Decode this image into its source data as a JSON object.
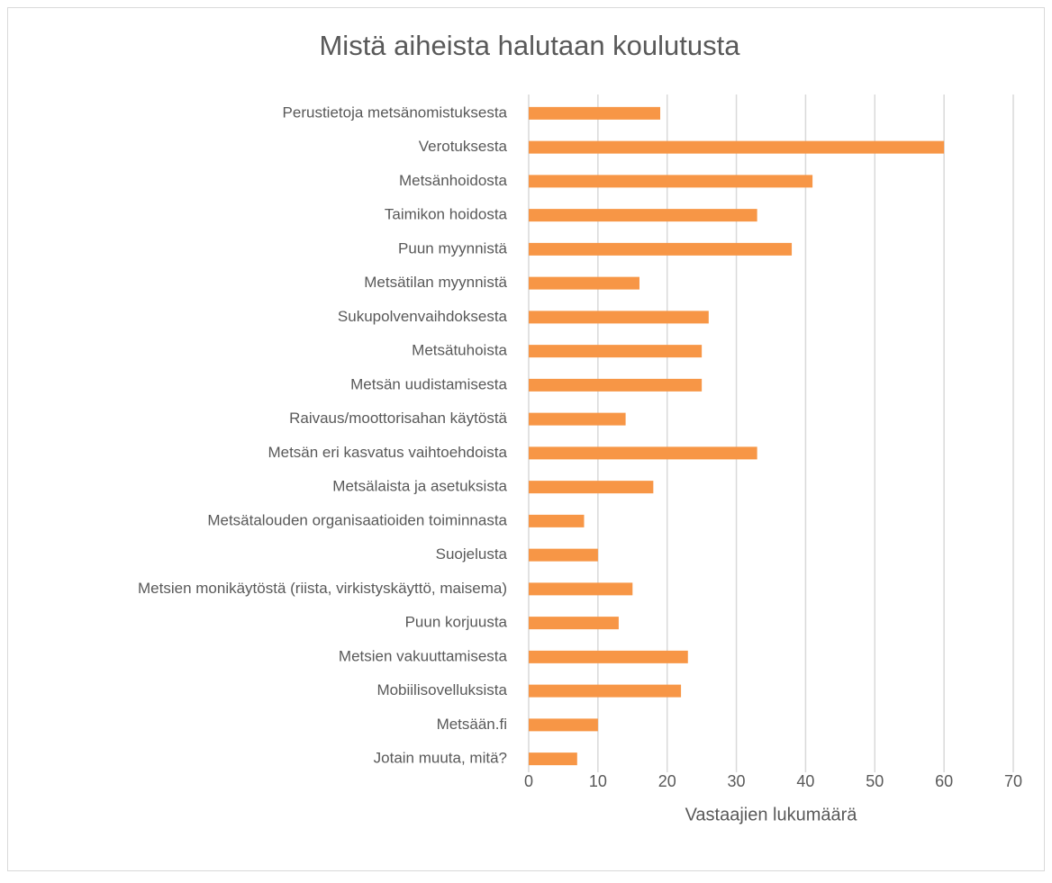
{
  "chart_data": {
    "type": "bar",
    "orientation": "horizontal",
    "title": "Mistä aiheista halutaan koulutusta",
    "x_label": "Vastaajien lukumäärä",
    "categories": [
      "Perustietoja metsänomistuksesta",
      "Verotuksesta",
      "Metsänhoidosta",
      "Taimikon hoidosta",
      "Puun myynnistä",
      "Metsätilan myynnistä",
      "Sukupolvenvaihdoksesta",
      "Metsätuhoista",
      "Metsän uudistamisesta",
      "Raivaus/moottorisahan käytöstä",
      "Metsän eri kasvatus vaihtoehdoista",
      "Metsälaista ja asetuksista",
      "Metsätalouden organisaatioiden toiminnasta",
      "Suojelusta",
      "Metsien monikäytöstä (riista, virkistyskäyttö, maisema)",
      "Puun korjuusta",
      "Metsien vakuuttamisesta",
      "Mobiilisovelluksista",
      "Metsään.fi",
      "Jotain muuta, mitä?"
    ],
    "values": [
      19,
      60,
      41,
      33,
      38,
      16,
      26,
      25,
      25,
      14,
      33,
      18,
      8,
      10,
      15,
      13,
      23,
      22,
      10,
      7
    ],
    "color": "#f79646",
    "xlim": [
      0,
      70
    ],
    "xticks": [
      0,
      10,
      20,
      30,
      40,
      50,
      60,
      70
    ],
    "grid": true
  }
}
